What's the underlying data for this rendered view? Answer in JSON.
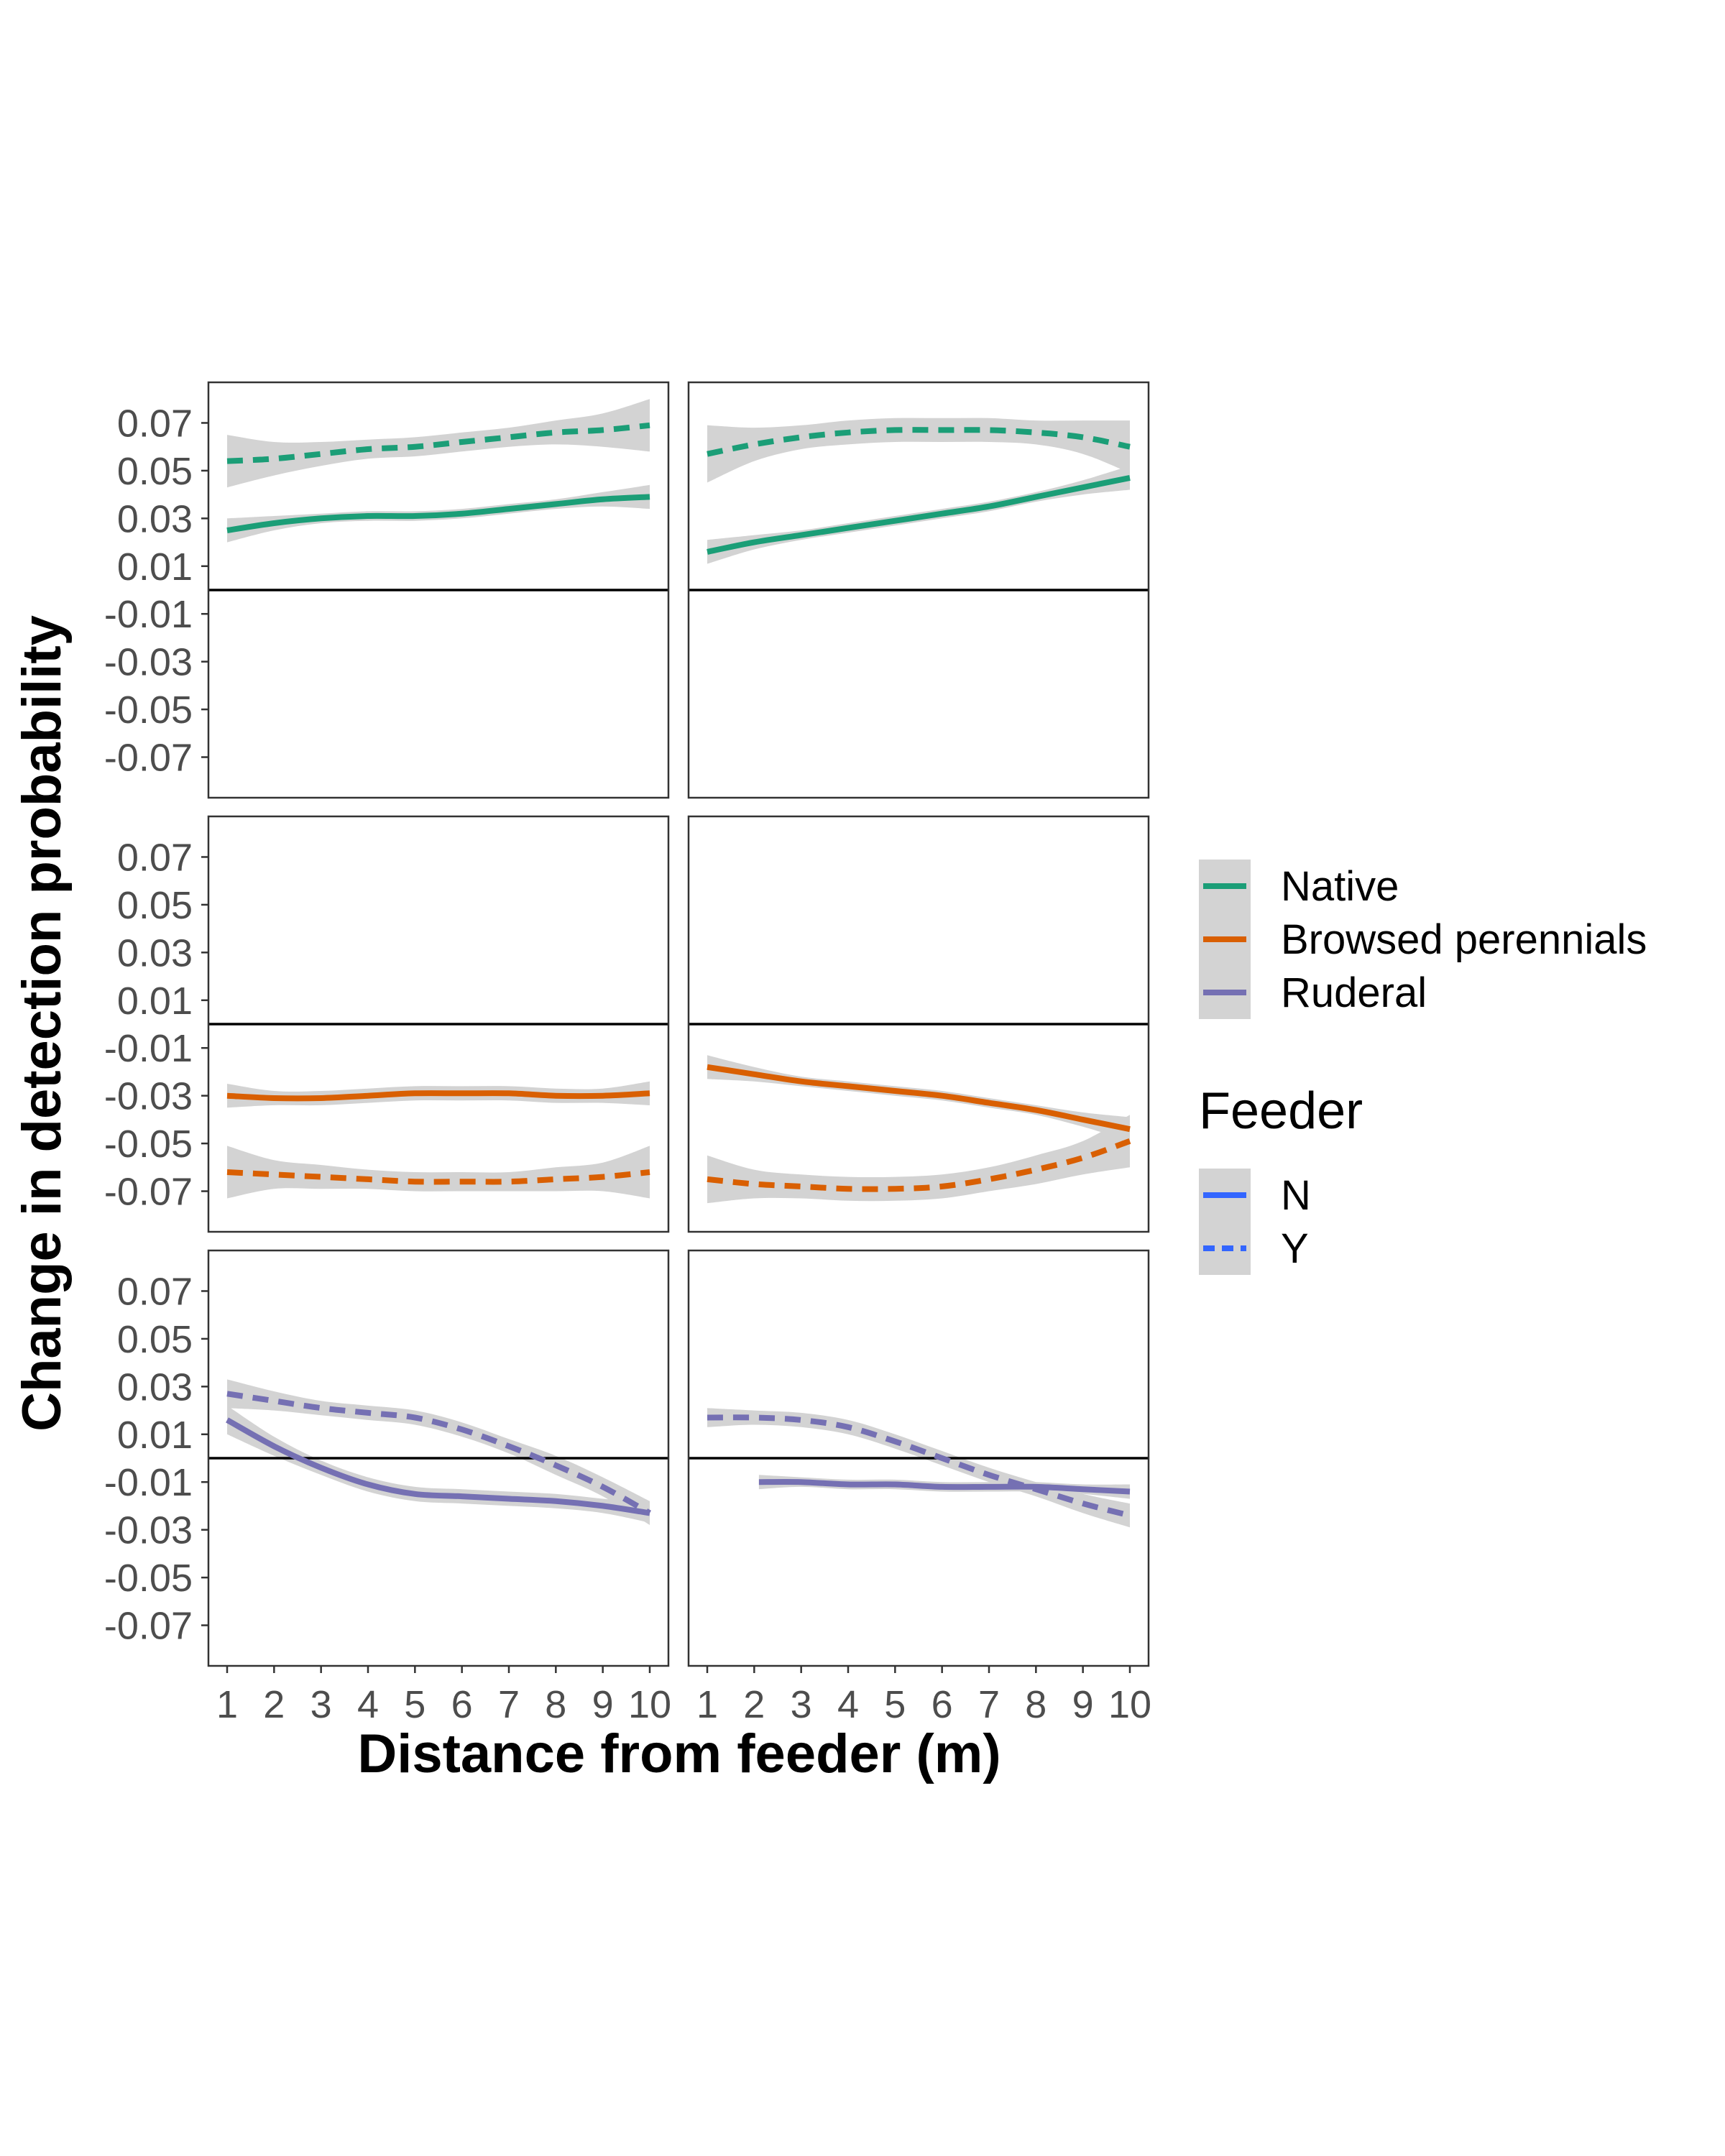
{
  "chart_data": {
    "type": "line",
    "layout": "3 rows x 2 columns of facets, shared axes",
    "xlabel": "Distance from feeder (m)",
    "ylabel": "Change in detection probability",
    "xlim": [
      1,
      10
    ],
    "ylim": [
      -0.087,
      0.087
    ],
    "x_ticks": [
      1,
      2,
      3,
      4,
      5,
      6,
      7,
      8,
      9,
      10
    ],
    "y_ticks": [
      0.07,
      0.05,
      0.03,
      0.01,
      -0.01,
      -0.03,
      -0.05,
      -0.07
    ],
    "y_tick_labels": [
      "0.07",
      "0.05",
      "0.03",
      "0.01",
      "-0.01",
      "-0.03",
      "-0.05",
      "-0.07"
    ],
    "reference_line_y": 0,
    "grid": false,
    "confidence_band_color": "#d3d3d3",
    "legend": {
      "placement": "right",
      "group_items": [
        {
          "label": "Native",
          "color": "#1b9e77"
        },
        {
          "label": "Browsed perennials",
          "color": "#d95f02"
        },
        {
          "label": "Ruderal",
          "color": "#7570b3"
        }
      ],
      "feeder_title": "Feeder",
      "feeder_items": [
        {
          "label": "N",
          "color": "#3366ff",
          "dash": "solid"
        },
        {
          "label": "Y",
          "color": "#3366ff",
          "dash": "dashed"
        }
      ]
    },
    "panels": [
      {
        "row": 0,
        "col": 0,
        "series": [
          {
            "group": "Native",
            "feeder": "Y",
            "color": "#1b9e77",
            "dash": "dashed",
            "x": [
              1,
              2,
              3,
              4,
              5,
              6,
              7,
              8,
              9,
              10
            ],
            "y": [
              0.054,
              0.055,
              0.057,
              0.059,
              0.06,
              0.062,
              0.064,
              0.066,
              0.067,
              0.069
            ],
            "ci": [
              0.011,
              0.007,
              0.005,
              0.004,
              0.004,
              0.004,
              0.004,
              0.005,
              0.007,
              0.011
            ]
          },
          {
            "group": "Native",
            "feeder": "N",
            "color": "#1b9e77",
            "dash": "solid",
            "x": [
              1,
              2,
              3,
              4,
              5,
              6,
              7,
              8,
              9,
              10
            ],
            "y": [
              0.025,
              0.028,
              0.03,
              0.031,
              0.031,
              0.032,
              0.034,
              0.036,
              0.038,
              0.039
            ],
            "ci": [
              0.005,
              0.003,
              0.002,
              0.002,
              0.002,
              0.002,
              0.002,
              0.002,
              0.003,
              0.005
            ]
          }
        ]
      },
      {
        "row": 0,
        "col": 1,
        "series": [
          {
            "group": "Native",
            "feeder": "Y",
            "color": "#1b9e77",
            "dash": "dashed",
            "x": [
              1,
              2,
              3,
              4,
              5,
              6,
              7,
              8,
              9,
              10
            ],
            "y": [
              0.057,
              0.061,
              0.064,
              0.066,
              0.067,
              0.067,
              0.067,
              0.066,
              0.064,
              0.06
            ],
            "ci": [
              0.012,
              0.007,
              0.005,
              0.005,
              0.005,
              0.005,
              0.005,
              0.005,
              0.007,
              0.011
            ]
          },
          {
            "group": "Native",
            "feeder": "N",
            "color": "#1b9e77",
            "dash": "solid",
            "x": [
              1,
              2,
              3,
              4,
              5,
              6,
              7,
              8,
              9,
              10
            ],
            "y": [
              0.016,
              0.02,
              0.023,
              0.026,
              0.029,
              0.032,
              0.035,
              0.039,
              0.043,
              0.047
            ],
            "ci": [
              0.005,
              0.003,
              0.002,
              0.002,
              0.002,
              0.002,
              0.002,
              0.002,
              0.003,
              0.005
            ]
          }
        ]
      },
      {
        "row": 1,
        "col": 0,
        "series": [
          {
            "group": "Browsed perennials",
            "feeder": "N",
            "color": "#d95f02",
            "dash": "solid",
            "x": [
              1,
              2,
              3,
              4,
              5,
              6,
              7,
              8,
              9,
              10
            ],
            "y": [
              -0.03,
              -0.031,
              -0.031,
              -0.03,
              -0.029,
              -0.029,
              -0.029,
              -0.03,
              -0.03,
              -0.029
            ],
            "ci": [
              0.005,
              0.003,
              0.003,
              0.003,
              0.003,
              0.003,
              0.003,
              0.003,
              0.003,
              0.005
            ]
          },
          {
            "group": "Browsed perennials",
            "feeder": "Y",
            "color": "#d95f02",
            "dash": "dashed",
            "x": [
              1,
              2,
              3,
              4,
              5,
              6,
              7,
              8,
              9,
              10
            ],
            "y": [
              -0.062,
              -0.063,
              -0.064,
              -0.065,
              -0.066,
              -0.066,
              -0.066,
              -0.065,
              -0.064,
              -0.062
            ],
            "ci": [
              0.011,
              0.006,
              0.005,
              0.004,
              0.004,
              0.004,
              0.004,
              0.005,
              0.006,
              0.011
            ]
          }
        ]
      },
      {
        "row": 1,
        "col": 1,
        "series": [
          {
            "group": "Browsed perennials",
            "feeder": "N",
            "color": "#d95f02",
            "dash": "solid",
            "x": [
              1,
              2,
              3,
              4,
              5,
              6,
              7,
              8,
              9,
              10
            ],
            "y": [
              -0.018,
              -0.021,
              -0.024,
              -0.026,
              -0.028,
              -0.03,
              -0.033,
              -0.036,
              -0.04,
              -0.044
            ],
            "ci": [
              0.005,
              0.003,
              0.002,
              0.002,
              0.002,
              0.002,
              0.002,
              0.002,
              0.003,
              0.005
            ]
          },
          {
            "group": "Browsed perennials",
            "feeder": "Y",
            "color": "#d95f02",
            "dash": "dashed",
            "x": [
              1,
              2,
              3,
              4,
              5,
              6,
              7,
              8,
              9,
              10
            ],
            "y": [
              -0.065,
              -0.067,
              -0.068,
              -0.069,
              -0.069,
              -0.068,
              -0.065,
              -0.061,
              -0.056,
              -0.049
            ],
            "ci": [
              0.01,
              0.006,
              0.005,
              0.005,
              0.005,
              0.005,
              0.005,
              0.006,
              0.007,
              0.011
            ]
          }
        ]
      },
      {
        "row": 2,
        "col": 0,
        "series": [
          {
            "group": "Ruderal",
            "feeder": "Y",
            "color": "#7570b3",
            "dash": "dashed",
            "x": [
              1,
              2,
              3,
              4,
              5,
              6,
              7,
              8,
              9,
              10
            ],
            "y": [
              0.027,
              0.024,
              0.021,
              0.019,
              0.017,
              0.012,
              0.005,
              -0.003,
              -0.012,
              -0.023
            ],
            "ci": [
              0.006,
              0.004,
              0.003,
              0.003,
              0.003,
              0.003,
              0.003,
              0.004,
              0.004,
              0.005
            ]
          },
          {
            "group": "Ruderal",
            "feeder": "N",
            "color": "#7570b3",
            "dash": "solid",
            "x": [
              1,
              2,
              3,
              4,
              5,
              6,
              7,
              8,
              9,
              10
            ],
            "y": [
              0.016,
              0.005,
              -0.004,
              -0.011,
              -0.015,
              -0.016,
              -0.017,
              -0.018,
              -0.02,
              -0.023
            ],
            "ci": [
              0.006,
              0.004,
              0.003,
              0.003,
              0.003,
              0.003,
              0.003,
              0.003,
              0.003,
              0.004
            ]
          }
        ]
      },
      {
        "row": 2,
        "col": 1,
        "series": [
          {
            "group": "Ruderal",
            "feeder": "Y",
            "color": "#7570b3",
            "dash": "dashed",
            "x": [
              1,
              2,
              3,
              4,
              5,
              6,
              7,
              8,
              9,
              10
            ],
            "y": [
              0.017,
              0.017,
              0.016,
              0.013,
              0.007,
              0.0,
              -0.007,
              -0.013,
              -0.019,
              -0.024
            ],
            "ci": [
              0.004,
              0.003,
              0.003,
              0.003,
              0.003,
              0.003,
              0.003,
              0.003,
              0.004,
              0.005
            ]
          },
          {
            "group": "Ruderal",
            "feeder": "N",
            "color": "#7570b3",
            "dash": "solid",
            "x": [
              2.1,
              3,
              4,
              5,
              6,
              7,
              8,
              9,
              10
            ],
            "y": [
              -0.01,
              -0.01,
              -0.011,
              -0.011,
              -0.012,
              -0.012,
              -0.012,
              -0.013,
              -0.014
            ],
            "ci": [
              0.003,
              0.002,
              0.002,
              0.002,
              0.002,
              0.002,
              0.002,
              0.002,
              0.003
            ]
          }
        ]
      }
    ]
  }
}
